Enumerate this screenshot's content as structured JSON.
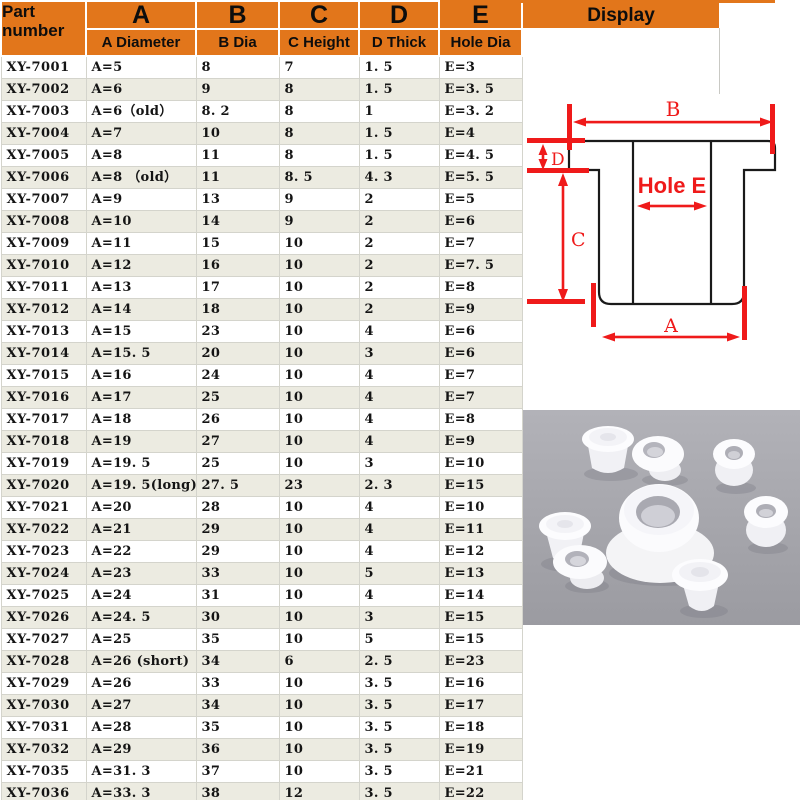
{
  "header": {
    "part_number": "Part number",
    "display": "Display",
    "columns": [
      {
        "letter": "A",
        "label": "A Diameter"
      },
      {
        "letter": "B",
        "label": "B Dia"
      },
      {
        "letter": "C",
        "label": "C Height"
      },
      {
        "letter": "D",
        "label": "D Thick"
      },
      {
        "letter": "E",
        "label": "Hole Dia"
      }
    ]
  },
  "table": {
    "rows": [
      {
        "part": "XY-7001",
        "a": "A=5",
        "b": "8",
        "c": "7",
        "d": "1. 5",
        "e": "E=3"
      },
      {
        "part": "XY-7002",
        "a": "A=6",
        "b": "9",
        "c": "8",
        "d": "1. 5",
        "e": "E=3. 5"
      },
      {
        "part": "XY-7003",
        "a": "A=6（old）",
        "b": "8. 2",
        "c": "8",
        "d": "1",
        "e": "E=3. 2"
      },
      {
        "part": "XY-7004",
        "a": "A=7",
        "b": "10",
        "c": "8",
        "d": "1. 5",
        "e": "E=4"
      },
      {
        "part": "XY-7005",
        "a": "A=8",
        "b": "11",
        "c": "8",
        "d": "1. 5",
        "e": "E=4. 5"
      },
      {
        "part": "XY-7006",
        "a": "A=8 （old）",
        "b": "11",
        "c": "8. 5",
        "d": "4. 3",
        "e": "E=5. 5"
      },
      {
        "part": "XY-7007",
        "a": "A=9",
        "b": "13",
        "c": "9",
        "d": "2",
        "e": "E=5"
      },
      {
        "part": "XY-7008",
        "a": "A=10",
        "b": "14",
        "c": "9",
        "d": "2",
        "e": "E=6"
      },
      {
        "part": "XY-7009",
        "a": "A=11",
        "b": "15",
        "c": "10",
        "d": "2",
        "e": "E=7"
      },
      {
        "part": "XY-7010",
        "a": "A=12",
        "b": "16",
        "c": "10",
        "d": "2",
        "e": "E=7. 5"
      },
      {
        "part": "XY-7011",
        "a": "A=13",
        "b": "17",
        "c": "10",
        "d": "2",
        "e": "E=8"
      },
      {
        "part": "XY-7012",
        "a": "A=14",
        "b": "18",
        "c": "10",
        "d": "2",
        "e": "E=9"
      },
      {
        "part": "XY-7013",
        "a": "A=15",
        "b": "23",
        "c": "10",
        "d": "4",
        "e": "E=6"
      },
      {
        "part": "XY-7014",
        "a": "A=15. 5",
        "b": "20",
        "c": "10",
        "d": "3",
        "e": "E=6"
      },
      {
        "part": "XY-7015",
        "a": "A=16",
        "b": "24",
        "c": "10",
        "d": "4",
        "e": "E=7"
      },
      {
        "part": "XY-7016",
        "a": "A=17",
        "b": "25",
        "c": "10",
        "d": "4",
        "e": "E=7"
      },
      {
        "part": "XY-7017",
        "a": "A=18",
        "b": "26",
        "c": "10",
        "d": "4",
        "e": "E=8"
      },
      {
        "part": "XY-7018",
        "a": "A=19",
        "b": "27",
        "c": "10",
        "d": "4",
        "e": "E=9"
      },
      {
        "part": "XY-7019",
        "a": "A=19. 5",
        "b": "25",
        "c": "10",
        "d": "3",
        "e": "E=10"
      },
      {
        "part": "XY-7020",
        "a": "A=19. 5(long)",
        "b": "27. 5",
        "c": "23",
        "d": "2. 3",
        "e": "E=15"
      },
      {
        "part": "XY-7021",
        "a": "A=20",
        "b": "28",
        "c": "10",
        "d": "4",
        "e": "E=10"
      },
      {
        "part": "XY-7022",
        "a": "A=21",
        "b": "29",
        "c": "10",
        "d": "4",
        "e": "E=11"
      },
      {
        "part": "XY-7023",
        "a": "A=22",
        "b": "29",
        "c": "10",
        "d": "4",
        "e": "E=12"
      },
      {
        "part": "XY-7024",
        "a": "A=23",
        "b": "33",
        "c": "10",
        "d": "5",
        "e": "E=13"
      },
      {
        "part": "XY-7025",
        "a": "A=24",
        "b": "31",
        "c": "10",
        "d": "4",
        "e": "E=14"
      },
      {
        "part": "XY-7026",
        "a": "A=24. 5",
        "b": "30",
        "c": "10",
        "d": "3",
        "e": "E=15"
      },
      {
        "part": "XY-7027",
        "a": "A=25",
        "b": "35",
        "c": "10",
        "d": "5",
        "e": "E=15"
      },
      {
        "part": "XY-7028",
        "a": "A=26 (short)",
        "b": "34",
        "c": "6",
        "d": "2. 5",
        "e": "E=23"
      },
      {
        "part": "XY-7029",
        "a": "A=26",
        "b": "33",
        "c": "10",
        "d": "3. 5",
        "e": "E=16"
      },
      {
        "part": "XY-7030",
        "a": "A=27",
        "b": "34",
        "c": "10",
        "d": "3. 5",
        "e": "E=17"
      },
      {
        "part": "XY-7031",
        "a": "A=28",
        "b": "35",
        "c": "10",
        "d": "3. 5",
        "e": "E=18"
      },
      {
        "part": "XY-7032",
        "a": "A=29",
        "b": "36",
        "c": "10",
        "d": "3. 5",
        "e": "E=19"
      },
      {
        "part": "XY-7035",
        "a": "A=31. 3",
        "b": "37",
        "c": "10",
        "d": "3. 5",
        "e": "E=21"
      },
      {
        "part": "XY-7036",
        "a": "A=33. 3",
        "b": "38",
        "c": "12",
        "d": "3. 5",
        "e": "E=22"
      }
    ]
  },
  "diagram": {
    "labels": {
      "b": "B",
      "d": "D",
      "c": "C",
      "a": "A",
      "hole_e": "Hole E"
    },
    "colors": {
      "dimension": "#ef1a1a",
      "outline": "#1a1a1a"
    }
  },
  "photo": {
    "subject": "white silicone grommet plugs",
    "background_color": "#a7a7ad"
  },
  "colors": {
    "header_orange": "#e2761b",
    "row_white": "#ffffff",
    "row_alt": "#ecebe1",
    "grid_border": "#d4d4cc",
    "text": "#141414"
  }
}
